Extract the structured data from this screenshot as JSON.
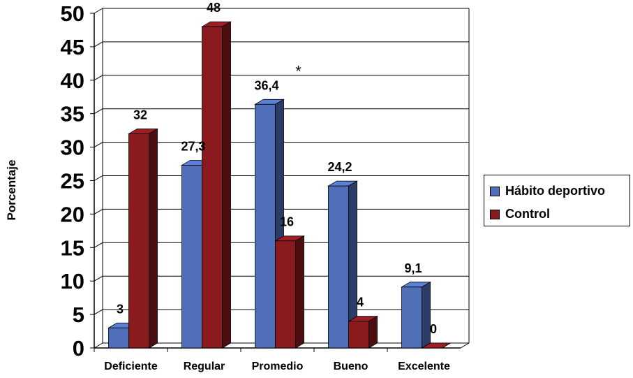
{
  "chart_data": {
    "type": "bar",
    "ylabel": "Porcentaje",
    "xlabel": "",
    "ylim": [
      0,
      50
    ],
    "yticks": [
      "0",
      "5",
      "10",
      "15",
      "20",
      "25",
      "30",
      "35",
      "40",
      "45",
      "50"
    ],
    "categories": [
      "Deficiente",
      "Regular",
      "Promedio",
      "Bueno",
      "Excelente"
    ],
    "series": [
      {
        "name": "Hábito deportivo",
        "color": "#4F6FB9",
        "values": [
          3,
          27.3,
          36.4,
          24.2,
          9.1
        ],
        "labels": [
          "3",
          "27,3",
          "36,4",
          "24,2",
          "9,1"
        ]
      },
      {
        "name": "Control",
        "color": "#8B1A1E",
        "values": [
          32,
          48,
          16,
          4,
          0
        ],
        "labels": [
          "32",
          "48",
          "16",
          "4",
          "0"
        ]
      }
    ],
    "annotations": [
      {
        "text": "*",
        "category": "Promedio",
        "y": 42
      }
    ],
    "grid": true,
    "legend_position": "right"
  }
}
